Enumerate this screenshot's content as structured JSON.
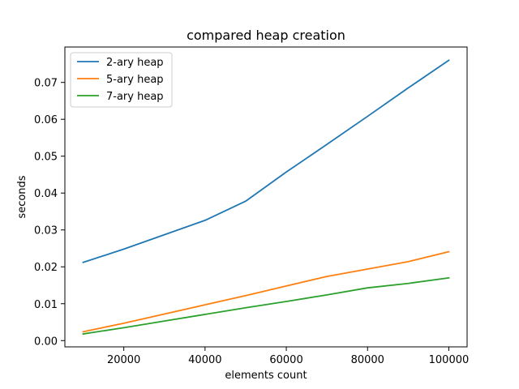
{
  "chart_data": {
    "type": "line",
    "title": "compared heap creation",
    "xlabel": "elements count",
    "ylabel": "seconds",
    "xlim": [
      5500,
      104500
    ],
    "ylim": [
      -0.0017,
      0.0796
    ],
    "xticks": [
      20000,
      40000,
      60000,
      80000,
      100000
    ],
    "yticks": [
      0.0,
      0.01,
      0.02,
      0.03,
      0.04,
      0.05,
      0.06,
      0.07
    ],
    "ytick_labels": [
      "0.00",
      "0.01",
      "0.02",
      "0.03",
      "0.04",
      "0.05",
      "0.06",
      "0.07"
    ],
    "grid": false,
    "legend_position": "upper-left",
    "x": [
      10000,
      20000,
      30000,
      40000,
      50000,
      60000,
      70000,
      80000,
      90000,
      100000
    ],
    "series": [
      {
        "name": "2-ary heap",
        "color": "#1f77b4",
        "values": [
          0.0212,
          0.0248,
          0.0287,
          0.0326,
          0.0378,
          0.0457,
          0.0532,
          0.0608,
          0.0685,
          0.076
        ]
      },
      {
        "name": "5-ary heap",
        "color": "#ff7f0e",
        "values": [
          0.0024,
          0.0047,
          0.0072,
          0.0097,
          0.0122,
          0.0148,
          0.0174,
          0.0194,
          0.0214,
          0.0241
        ]
      },
      {
        "name": "7-ary heap",
        "color": "#2ca02c",
        "values": [
          0.0018,
          0.0035,
          0.0053,
          0.0071,
          0.0089,
          0.0106,
          0.0124,
          0.0143,
          0.0155,
          0.017
        ]
      }
    ]
  }
}
